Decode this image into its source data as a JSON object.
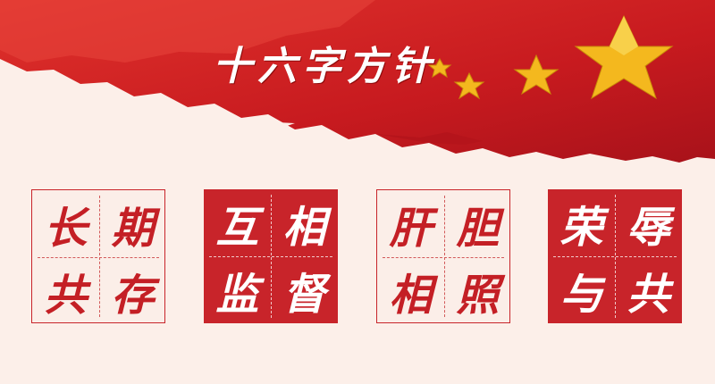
{
  "title": "十六字方针",
  "colors": {
    "red": "#c8242a",
    "gold": "#f4b81e",
    "background": "#fcefe9"
  },
  "grids": [
    {
      "style": "light",
      "chars": [
        "长",
        "期",
        "共",
        "存"
      ]
    },
    {
      "style": "dark",
      "chars": [
        "互",
        "相",
        "监",
        "督"
      ]
    },
    {
      "style": "light",
      "chars": [
        "肝",
        "胆",
        "相",
        "照"
      ]
    },
    {
      "style": "dark",
      "chars": [
        "荣",
        "辱",
        "与",
        "共"
      ]
    }
  ]
}
